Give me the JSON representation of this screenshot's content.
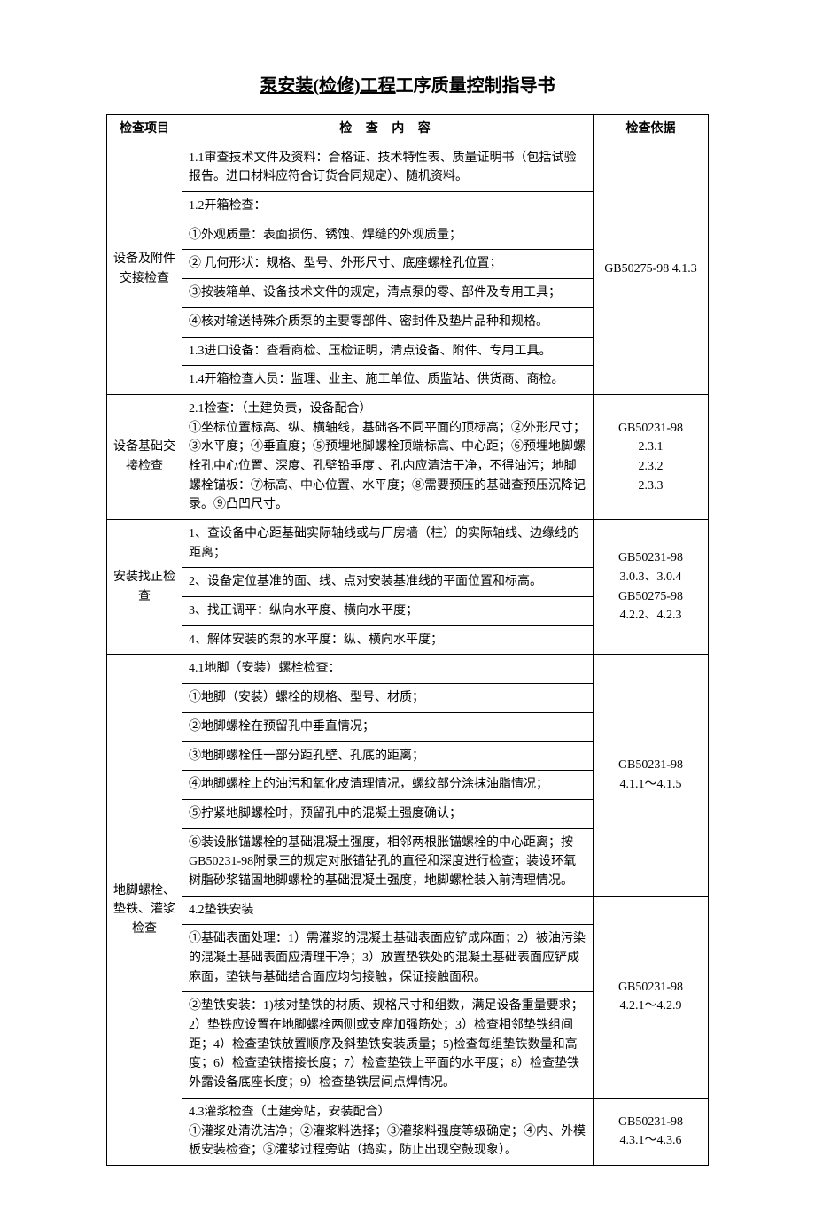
{
  "title": {
    "underlined": "泵安装(检修)工程",
    "rest": "工序质量控制指导书"
  },
  "headers": {
    "item": "检查项目",
    "content": "检 查 内 容",
    "basis": "检查依据"
  },
  "sections": [
    {
      "item": "设备及附件交接检查",
      "basis": "GB50275-98 4.1.3",
      "rows": [
        "1.1审查技术文件及资料：合格证、技术特性表、质量证明书（包括试验报告。进口材料应符合订货合同规定）、随机资料。",
        "1.2开箱检查：",
        "①外观质量：表面损伤、锈蚀、焊缝的外观质量；",
        "② 几何形状：规格、型号、外形尺寸、底座螺栓孔位置；",
        "③按装箱单、设备技术文件的规定，清点泵的零、部件及专用工具；",
        "④核对输送特殊介质泵的主要零部件、密封件及垫片品种和规格。",
        "1.3进口设备：查看商检、压检证明，清点设备、附件、专用工具。",
        "1.4开箱检查人员：监理、业主、施工单位、质监站、供货商、商检。"
      ]
    },
    {
      "item": "设备基础交接检查",
      "basis": "GB50231-98\n2.3.1\n2.3.2\n2.3.3",
      "rows": [
        "2.1检查：（土建负责，设备配合）\n①坐标位置标高、纵、横轴线，基础各不同平面的顶标高；②外形尺寸；③水平度；④垂直度；⑤预埋地脚螺栓顶端标高、中心距；⑥预埋地脚螺栓孔中心位置、深度、孔壁铅垂度 、孔内应清洁干净，不得油污；地脚螺栓锚板：⑦标高、中心位置、水平度；⑧需要预压的基础查预压沉降记录。⑨凸凹尺寸。"
      ]
    },
    {
      "item": "安装找正检查",
      "basis": "GB50231-98\n3.0.3、3.0.4\nGB50275-98\n4.2.2、4.2.3",
      "rows": [
        "1、查设备中心距基础实际轴线或与厂房墙（柱）的实际轴线、边缘线的距离；",
        "2、设备定位基准的面、线、点对安装基准线的平面位置和标高。",
        "3、找正调平：纵向水平度、横向水平度；",
        "4、解体安装的泵的水平度：纵、横向水平度；"
      ]
    },
    {
      "item": "地脚螺栓、垫铁、灌浆检查",
      "subs": [
        {
          "basis": "GB50231-98\n4.1.1～4.1.5",
          "rows": [
            "4.1地脚（安装）螺栓检查：",
            "①地脚（安装）螺栓的规格、型号、材质；",
            "②地脚螺栓在预留孔中垂直情况；",
            "③地脚螺栓任一部分距孔壁、孔底的距离；",
            "④地脚螺栓上的油污和氧化皮清理情况，螺纹部分涂抹油脂情况；",
            "⑤拧紧地脚螺栓时，预留孔中的混凝土强度确认；",
            "⑥装设胀锚螺栓的基础混凝土强度，相邻两根胀锚螺栓的中心距离；按GB50231-98附录三的规定对胀锚钻孔的直径和深度进行检查；装设环氧树脂砂浆锚固地脚螺栓的基础混凝土强度，地脚螺栓装入前清理情况。"
          ]
        },
        {
          "basis": "GB50231-98\n4.2.1～4.2.9",
          "rows": [
            "4.2垫铁安装",
            "①基础表面处理：1）需灌浆的混凝土基础表面应铲成麻面；2）被油污染的混凝土基础表面应清理干净；3）放置垫铁处的混凝土基础表面应铲成麻面，垫铁与基础结合面应均匀接触，保证接触面积。",
            "②垫铁安装：1)核对垫铁的材质、规格尺寸和组数，满足设备重量要求；2）垫铁应设置在地脚螺栓两侧或支座加强筋处；3）检查相邻垫铁组间距；4）检查垫铁放置顺序及斜垫铁安装质量；5)检查每组垫铁数量和高度；6）检查垫铁搭接长度；7）检查垫铁上平面的水平度；8）检查垫铁外露设备底座长度；9）检查垫铁层间点焊情况。"
          ]
        },
        {
          "basis": "GB50231-98\n4.3.1～4.3.6",
          "rows": [
            "4.3灌浆检查（土建旁站，安装配合）\n①灌浆处清洗洁净；②灌浆料选择；③灌浆料强度等级确定；④内、外模板安装检查；⑤灌浆过程旁站（捣实，防止出现空鼓现象）。"
          ]
        }
      ]
    }
  ]
}
